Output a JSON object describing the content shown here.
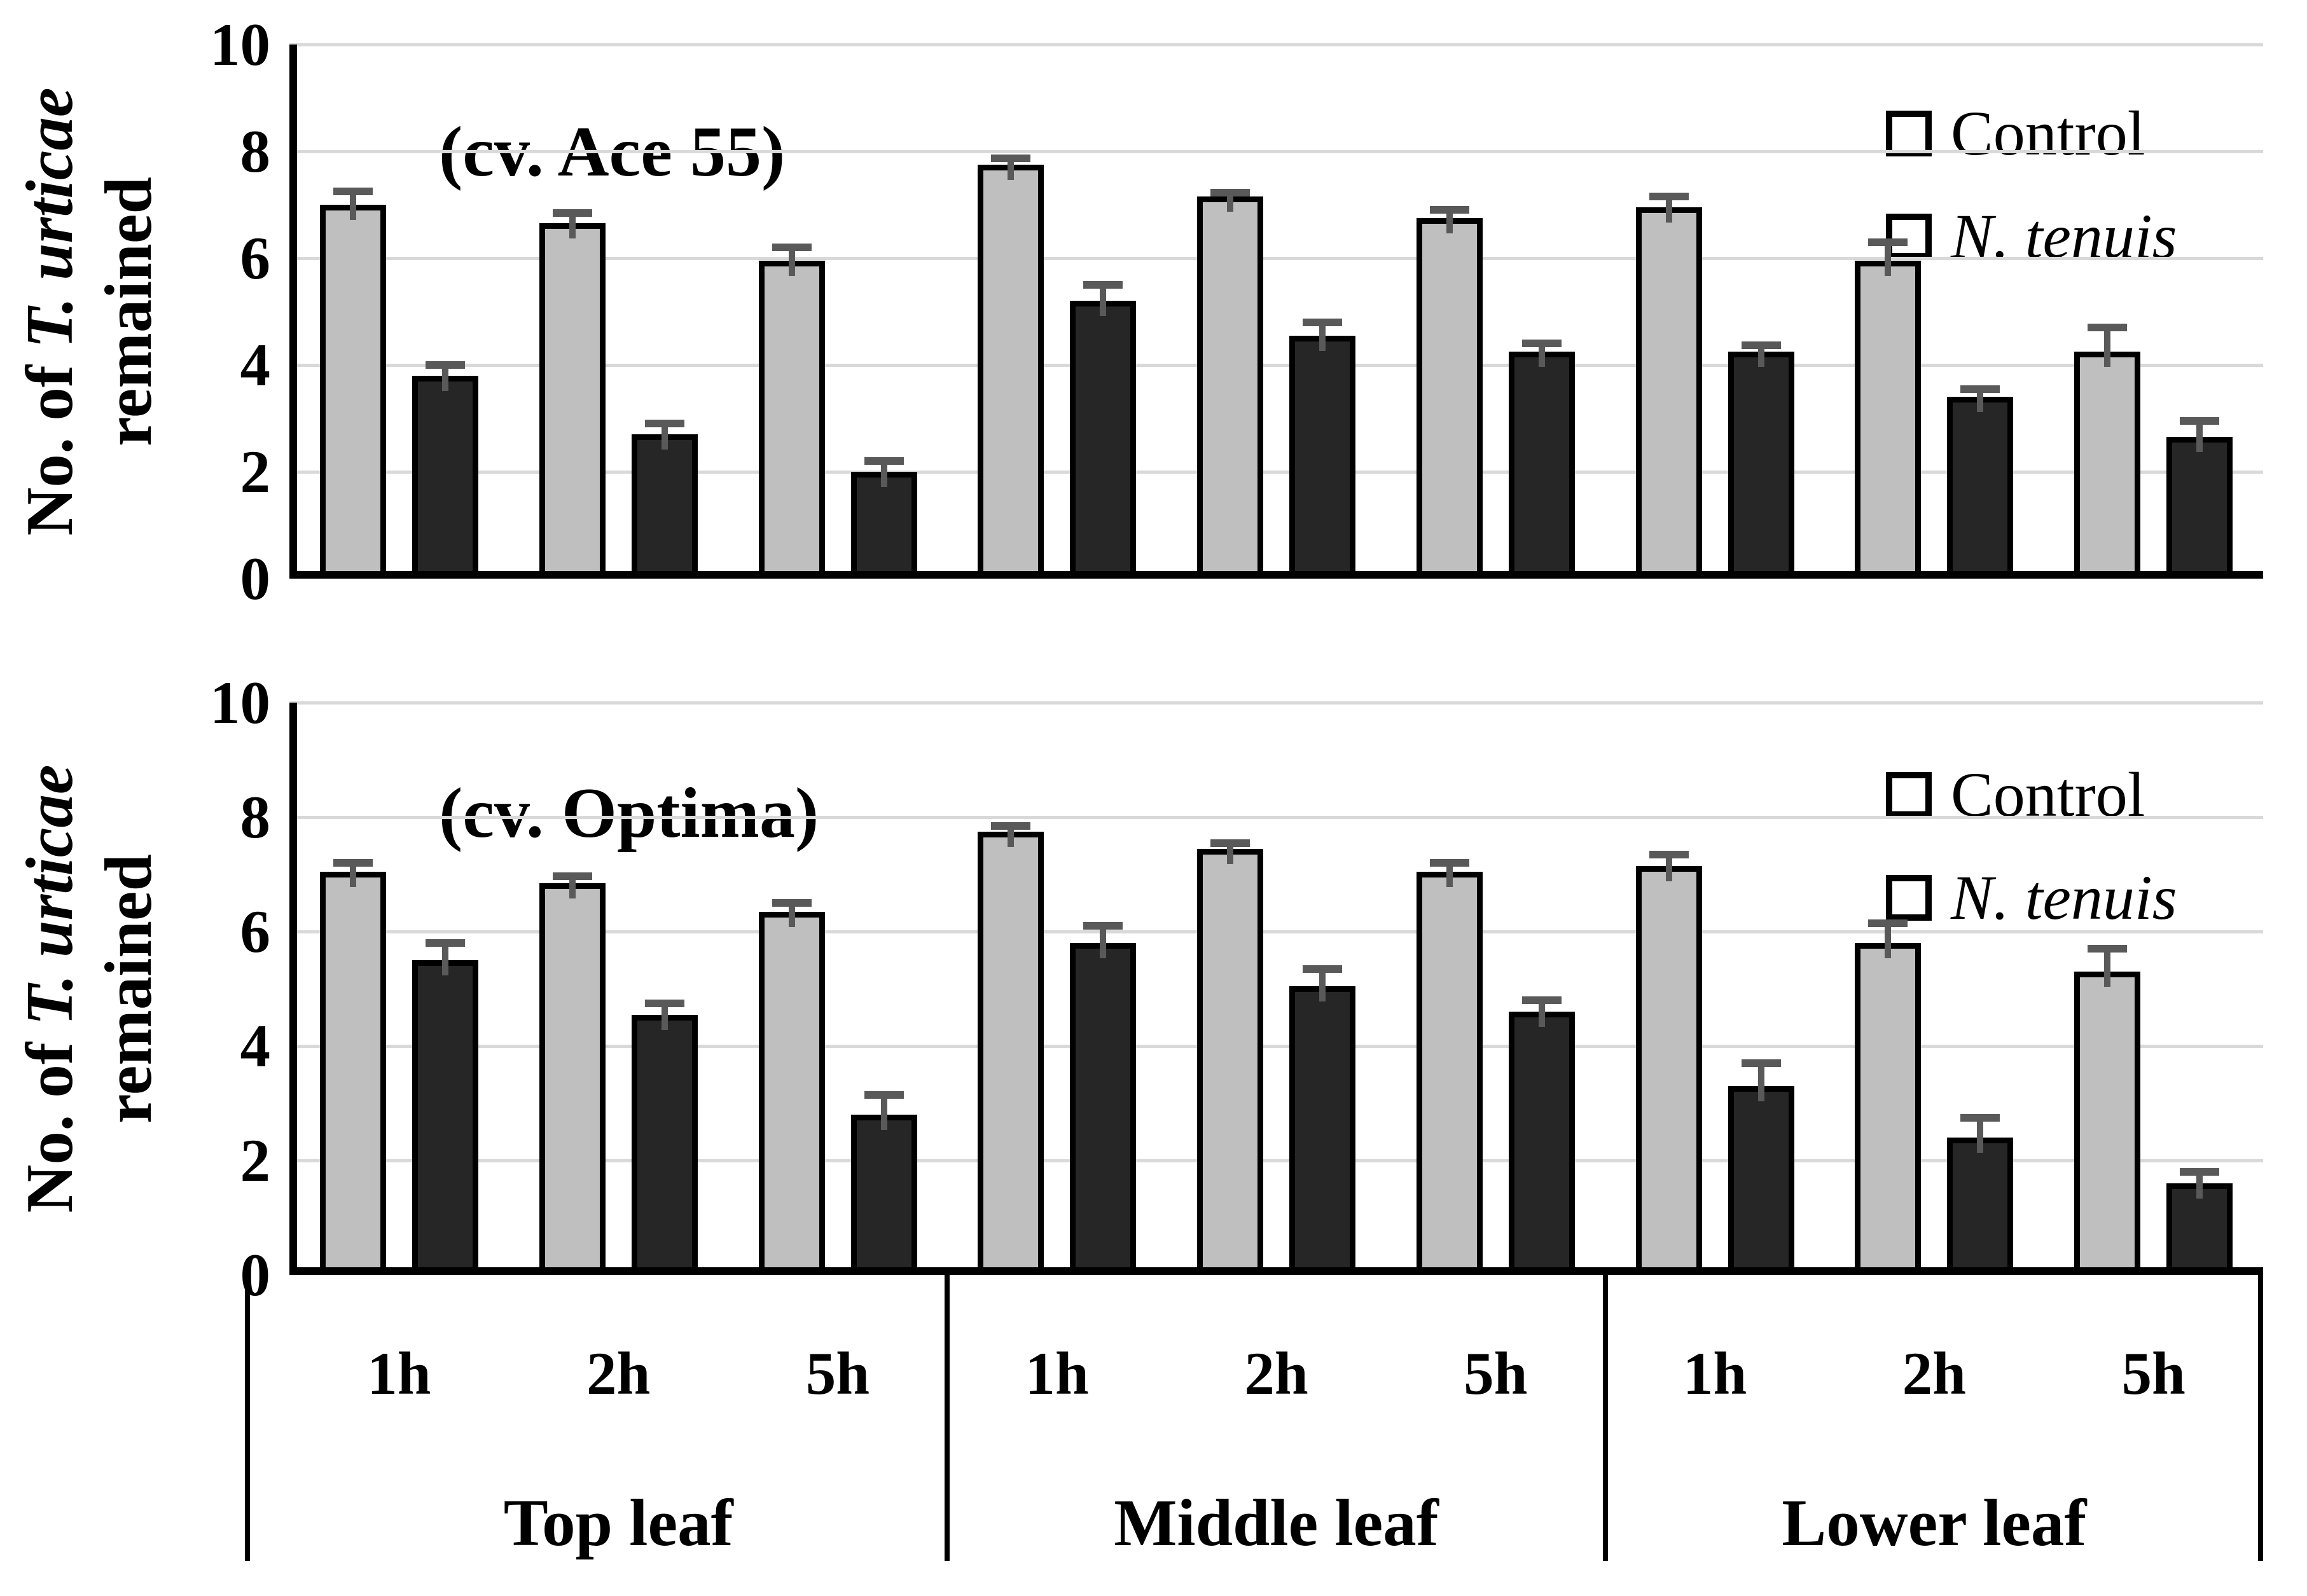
{
  "figure": {
    "ylabel": {
      "prefix": "No. of ",
      "italic": "T. urticae",
      "line2": "remained"
    },
    "legend": [
      {
        "label": "Control",
        "italic": false
      },
      {
        "label": "N. tenuis",
        "italic": true
      }
    ],
    "colors": {
      "control_fill": "#bfbfbf",
      "n_tenuis_fill": "#262626",
      "error_bar": "#595959",
      "gridline": "#d9d9d9",
      "axis": "#000000"
    }
  },
  "chart_data": [
    {
      "type": "bar",
      "panel_label": "(cv. Ace 55)",
      "ylabel": "No. of T. urticae remained",
      "ylim": [
        0,
        10
      ],
      "yticks": [
        0,
        2,
        4,
        6,
        8,
        10
      ],
      "grid": true,
      "legend_position": "top-right",
      "groups": [
        "Top leaf",
        "Middle leaf",
        "Lower leaf"
      ],
      "times": [
        "1h",
        "2h",
        "5h"
      ],
      "categories": [
        "Top leaf 1h",
        "Top leaf 2h",
        "Top leaf 5h",
        "Middle leaf 1h",
        "Middle leaf 2h",
        "Middle leaf 5h",
        "Lower leaf 1h",
        "Lower leaf 2h",
        "Lower leaf 5h"
      ],
      "series": [
        {
          "name": "Control",
          "values": [
            7.0,
            6.65,
            5.95,
            7.75,
            7.15,
            6.75,
            6.95,
            5.95,
            4.25
          ],
          "errors": [
            0.25,
            0.2,
            0.25,
            0.12,
            0.08,
            0.15,
            0.2,
            0.35,
            0.45
          ]
        },
        {
          "name": "N. tenuis",
          "values": [
            3.8,
            2.7,
            2.0,
            5.2,
            4.55,
            4.25,
            4.25,
            3.4,
            2.65
          ],
          "errors": [
            0.2,
            0.2,
            0.2,
            0.3,
            0.25,
            0.15,
            0.12,
            0.15,
            0.3
          ]
        }
      ]
    },
    {
      "type": "bar",
      "panel_label": "(cv. Optima)",
      "ylabel": "No. of T. urticae remained",
      "ylim": [
        0,
        10
      ],
      "yticks": [
        0,
        2,
        4,
        6,
        8,
        10
      ],
      "grid": true,
      "legend_position": "top-right",
      "groups": [
        "Top leaf",
        "Middle leaf",
        "Lower leaf"
      ],
      "times": [
        "1h",
        "2h",
        "5h"
      ],
      "categories": [
        "Top leaf 1h",
        "Top leaf 2h",
        "Top leaf 5h",
        "Middle leaf 1h",
        "Middle leaf 2h",
        "Middle leaf 5h",
        "Lower leaf 1h",
        "Lower leaf 2h",
        "Lower leaf 5h"
      ],
      "series": [
        {
          "name": "Control",
          "values": [
            7.05,
            6.85,
            6.35,
            7.75,
            7.45,
            7.05,
            7.15,
            5.8,
            5.3
          ],
          "errors": [
            0.15,
            0.12,
            0.15,
            0.1,
            0.1,
            0.15,
            0.2,
            0.35,
            0.4
          ]
        },
        {
          "name": "N. tenuis",
          "values": [
            5.5,
            4.55,
            2.8,
            5.8,
            5.05,
            4.6,
            3.3,
            2.4,
            1.6
          ],
          "errors": [
            0.3,
            0.2,
            0.35,
            0.3,
            0.3,
            0.2,
            0.4,
            0.35,
            0.2
          ]
        }
      ]
    }
  ]
}
